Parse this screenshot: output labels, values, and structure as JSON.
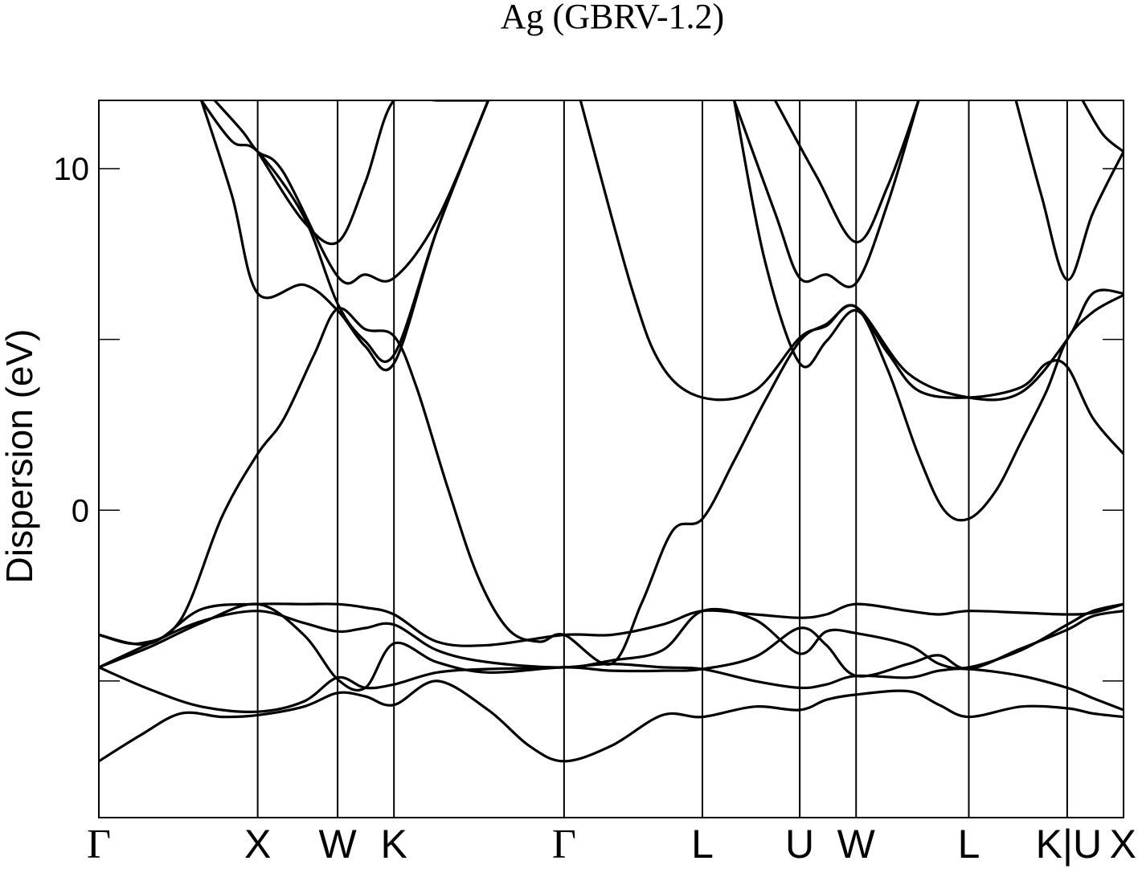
{
  "chart_data": {
    "type": "line",
    "title": "Ag (GBRV-1.2)",
    "xlabel": "",
    "ylabel": "Dispersion (eV)",
    "ylim": [
      -9,
      12
    ],
    "xlim": [
      0,
      1
    ],
    "y_ticks": [
      {
        "value": -5,
        "label": ""
      },
      {
        "value": 0,
        "label": "0"
      },
      {
        "value": 5,
        "label": ""
      },
      {
        "value": 10,
        "label": "10"
      }
    ],
    "k_points": [
      {
        "label": "Γ",
        "x": 0.0
      },
      {
        "label": "X",
        "x": 0.155
      },
      {
        "label": "W",
        "x": 0.233
      },
      {
        "label": "K",
        "x": 0.288
      },
      {
        "label": "Γ",
        "x": 0.454
      },
      {
        "label": "L",
        "x": 0.589
      },
      {
        "label": "U",
        "x": 0.684
      },
      {
        "label": "W",
        "x": 0.739
      },
      {
        "label": "L",
        "x": 0.849
      },
      {
        "label": "K|U",
        "x": 0.945
      },
      {
        "label": "X",
        "x": 1.0
      }
    ],
    "grid": false,
    "series": [
      {
        "x": [
          0.0,
          0.04,
          0.08,
          0.12,
          0.155,
          0.2,
          0.233,
          0.26,
          0.288,
          0.33,
          0.38,
          0.42,
          0.454,
          0.5,
          0.55,
          0.589,
          0.64,
          0.684,
          0.71,
          0.739,
          0.79,
          0.82,
          0.849,
          0.9,
          0.945,
          0.97,
          1.0
        ],
        "values": [
          -7.35,
          -6.6,
          -5.95,
          -6.05,
          -6.0,
          -5.75,
          -5.35,
          -5.45,
          -5.7,
          -5.0,
          -5.85,
          -6.9,
          -7.35,
          -6.9,
          -6.0,
          -6.05,
          -5.75,
          -5.85,
          -5.55,
          -5.4,
          -5.3,
          -5.7,
          -6.05,
          -5.75,
          -5.8,
          -5.95,
          -6.05
        ]
      },
      {
        "x": [
          0.0,
          0.05,
          0.1,
          0.155,
          0.2,
          0.233,
          0.26,
          0.288,
          0.33,
          0.38,
          0.454,
          0.5,
          0.55,
          0.589,
          0.64,
          0.684,
          0.71,
          0.739,
          0.79,
          0.82,
          0.849,
          0.9,
          0.945,
          0.97,
          1.0
        ],
        "values": [
          -4.6,
          -5.25,
          -5.75,
          -5.9,
          -5.6,
          -4.9,
          -5.2,
          -5.1,
          -4.75,
          -4.65,
          -4.6,
          -4.5,
          -4.6,
          -4.65,
          -5.0,
          -5.2,
          -5.1,
          -4.85,
          -4.9,
          -4.7,
          -4.65,
          -4.85,
          -5.2,
          -5.5,
          -5.85
        ]
      },
      {
        "x": [
          0.0,
          0.05,
          0.1,
          0.155,
          0.2,
          0.233,
          0.26,
          0.288,
          0.33,
          0.38,
          0.454,
          0.5,
          0.55,
          0.589,
          0.64,
          0.684,
          0.71,
          0.739,
          0.79,
          0.82,
          0.849,
          0.9,
          0.945,
          0.97,
          1.0
        ],
        "values": [
          -4.6,
          -4.0,
          -3.3,
          -2.75,
          -3.65,
          -4.95,
          -5.2,
          -3.9,
          -4.45,
          -4.75,
          -4.6,
          -4.7,
          -4.7,
          -4.65,
          -4.3,
          -3.45,
          -3.95,
          -4.85,
          -4.5,
          -4.25,
          -4.65,
          -4.05,
          -3.5,
          -3.1,
          -2.95
        ]
      },
      {
        "x": [
          0.0,
          0.05,
          0.1,
          0.155,
          0.2,
          0.233,
          0.26,
          0.288,
          0.33,
          0.38,
          0.454,
          0.5,
          0.55,
          0.589,
          0.64,
          0.684,
          0.71,
          0.739,
          0.79,
          0.82,
          0.849,
          0.9,
          0.945,
          0.97,
          1.0
        ],
        "values": [
          -4.6,
          -3.9,
          -3.25,
          -2.95,
          -3.3,
          -3.55,
          -3.45,
          -3.35,
          -4.1,
          -4.45,
          -4.6,
          -4.4,
          -4.1,
          -2.95,
          -3.2,
          -4.2,
          -3.55,
          -3.6,
          -3.95,
          -4.5,
          -4.6,
          -4.1,
          -3.35,
          -2.95,
          -2.75
        ]
      },
      {
        "x": [
          0.0,
          0.05,
          0.1,
          0.155,
          0.2,
          0.233,
          0.26,
          0.288,
          0.33,
          0.38,
          0.454,
          0.5,
          0.55,
          0.589,
          0.64,
          0.684,
          0.71,
          0.739,
          0.79,
          0.82,
          0.849,
          0.9,
          0.945,
          0.97,
          1.0
        ],
        "values": [
          -3.65,
          -3.9,
          -2.9,
          -2.75,
          -2.75,
          -2.75,
          -2.85,
          -3.05,
          -3.85,
          -3.95,
          -3.65,
          -3.65,
          -3.35,
          -2.95,
          -3.05,
          -3.15,
          -3.05,
          -2.75,
          -2.95,
          -3.05,
          -2.95,
          -3.0,
          -3.05,
          -3.0,
          -2.75
        ]
      },
      {
        "x": [
          0.0,
          0.04,
          0.08,
          0.12,
          0.155,
          0.18,
          0.21,
          0.233,
          0.26,
          0.288,
          0.31,
          0.34,
          0.37,
          0.4,
          0.43,
          0.454,
          0.5,
          0.53,
          0.56,
          0.589,
          0.62,
          0.65,
          0.684,
          0.71,
          0.739,
          0.77,
          0.8,
          0.825,
          0.849,
          0.875,
          0.9,
          0.925,
          0.945,
          0.97,
          1.0
        ],
        "values": [
          -3.65,
          -3.9,
          -3.2,
          -0.2,
          1.65,
          2.65,
          4.55,
          5.9,
          5.3,
          5.1,
          3.6,
          0.7,
          -1.95,
          -3.5,
          -3.85,
          -3.65,
          -4.5,
          -2.7,
          -0.6,
          -0.25,
          1.45,
          3.2,
          4.95,
          5.45,
          5.95,
          4.1,
          1.6,
          0.0,
          -0.25,
          0.55,
          2.0,
          3.5,
          5.0,
          5.8,
          6.3
        ]
      },
      {
        "x": [
          0.1,
          0.13,
          0.155,
          0.2,
          0.233,
          0.26,
          0.288,
          0.33,
          0.38
        ],
        "values": [
          12,
          9.2,
          6.35,
          6.6,
          5.85,
          4.8,
          4.3,
          8.2,
          12
        ]
      },
      {
        "x": [
          0.62,
          0.65,
          0.684,
          0.71,
          0.739,
          0.77,
          0.8,
          0.849,
          0.9,
          0.925,
          0.945,
          0.97,
          1.0
        ],
        "values": [
          12,
          7.3,
          4.3,
          4.95,
          5.85,
          4.6,
          3.5,
          3.3,
          3.6,
          4.3,
          4.2,
          2.7,
          1.65
        ]
      },
      {
        "x": [
          0.1,
          0.13,
          0.155,
          0.2,
          0.233,
          0.26,
          0.288,
          0.33,
          0.38
        ],
        "values": [
          12,
          10.8,
          10.5,
          8.6,
          6.05,
          4.95,
          4.55,
          8.2,
          12
        ]
      },
      {
        "x": [
          0.47,
          0.52,
          0.55,
          0.589,
          0.64,
          0.684,
          0.71,
          0.739,
          0.79,
          0.849,
          0.9,
          0.945,
          0.97,
          1.0
        ],
        "values": [
          12,
          6.5,
          4.2,
          3.3,
          3.5,
          5.05,
          5.4,
          5.95,
          4.0,
          3.3,
          3.45,
          5.0,
          6.35,
          6.35
        ]
      },
      {
        "x": [
          0.155,
          0.2,
          0.233,
          0.26,
          0.288,
          0.33,
          0.38
        ],
        "values": [
          10.5,
          8.45,
          7.85,
          9.6,
          12,
          12,
          12
        ]
      },
      {
        "x": [
          0.62,
          0.66,
          0.684,
          0.71,
          0.739,
          0.77,
          0.8
        ],
        "values": [
          12,
          8.7,
          6.8,
          6.9,
          6.65,
          9.0,
          12
        ]
      },
      {
        "x": [
          0.66,
          0.7,
          0.739,
          0.77,
          0.8
        ],
        "values": [
          12,
          9.8,
          7.85,
          9.5,
          12
        ]
      },
      {
        "x": [
          0.113,
          0.14,
          0.155,
          0.18,
          0.233,
          0.26,
          0.288,
          0.33,
          0.38
        ],
        "values": [
          12,
          11.1,
          10.5,
          9.9,
          6.85,
          6.9,
          6.8,
          8.5,
          12
        ]
      },
      {
        "x": [
          0.895,
          0.92,
          0.945,
          0.97,
          1.0
        ],
        "values": [
          12,
          9.2,
          6.75,
          8.7,
          10.5
        ]
      },
      {
        "x": [
          0.96,
          0.98,
          1.0
        ],
        "values": [
          12,
          11.0,
          10.5
        ]
      }
    ]
  }
}
